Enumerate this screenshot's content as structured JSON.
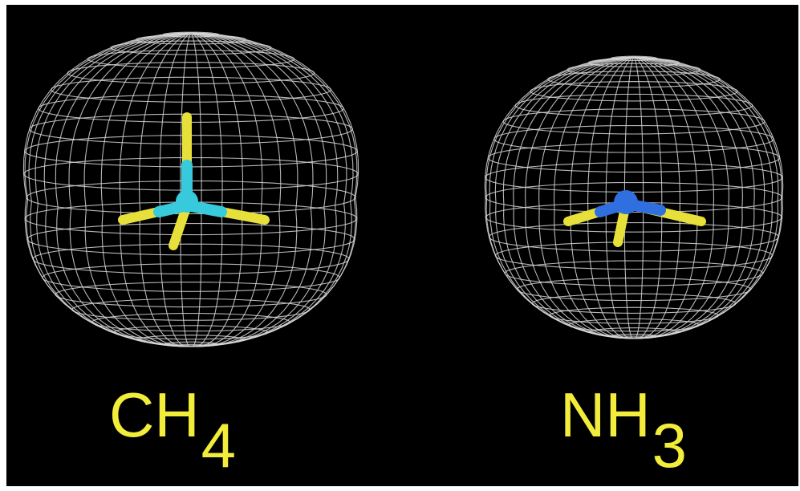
{
  "colors": {
    "background": "#000000",
    "mesh": "#d6d6d6",
    "label": "#f2ec3a",
    "hydrogen_bond": "#e8e03a",
    "carbon": "#37c9dc",
    "nitrogen": "#2f6fe0"
  },
  "molecules": [
    {
      "id": "ch4",
      "formula_main": "CH",
      "formula_sub": "4",
      "central_atom_color": "carbon",
      "geometry": "tetrahedral"
    },
    {
      "id": "nh3",
      "formula_main": "NH",
      "formula_sub": "3",
      "central_atom_color": "nitrogen",
      "geometry": "trigonal-pyramidal"
    }
  ]
}
